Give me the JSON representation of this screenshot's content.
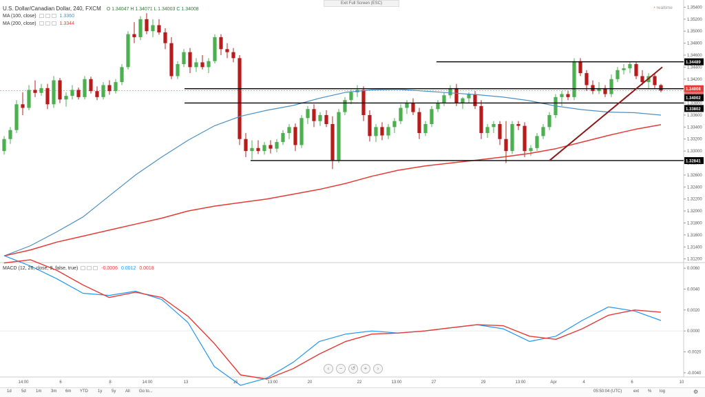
{
  "header": {
    "symbol": "U.S. Dollar/Canadian Dollar, 240, FXCM",
    "ohlc": "O 1.34047  H 1.34071  L 1.34003  C 1.34008",
    "ma100_label": "MA (100, close)",
    "ma100_value": "1.3360",
    "ma200_label": "MA (200, close)",
    "ma200_value": "1.3344",
    "exit_fullscreen": "Exit Full Screen (ESC)",
    "realtime": "realtime"
  },
  "macd_legend": {
    "label": "MACD (12, 26, close, 9, false, true)",
    "v1": "-0.0006",
    "v2": "0.0012",
    "v3": "0.0018"
  },
  "toolbar": {
    "ranges": [
      "1d",
      "5d",
      "1m",
      "3m",
      "6m",
      "YTD",
      "1y",
      "5y",
      "All",
      "Go to..."
    ],
    "time": "05:50:04 (UTC)",
    "ext": "ext",
    "pct": "%",
    "log": "log",
    "gear": "gear-icon"
  },
  "colors": {
    "up": "#4caf50",
    "down": "#b71c1c",
    "ma100": "#4a90c2",
    "ma200": "#e53935",
    "macd": "#2196f3",
    "signal": "#e53935",
    "level_line": "#000000",
    "trendline": "#8b1a1a"
  },
  "chart_data": [
    {
      "type": "candlestick",
      "title": "U.S. Dollar/Canadian Dollar, 240, FXCM",
      "y_ticks": [
        "1.35400",
        "1.35200",
        "1.35000",
        "1.34800",
        "1.34600",
        "1.34400",
        "1.34200",
        "1.34000",
        "1.33800",
        "1.33600",
        "1.33400",
        "1.33200",
        "1.33000",
        "1.32800",
        "1.32600",
        "1.32400",
        "1.32200",
        "1.32000",
        "1.31800",
        "1.31600",
        "1.31400",
        "1.31200"
      ],
      "ylim": [
        1.3115,
        1.3552
      ],
      "x_ticks": [
        "14:00",
        "6",
        "8",
        "14:00",
        "13",
        "15",
        "13:00",
        "20",
        "22",
        "13:00",
        "27",
        "29",
        "13:00",
        "Apr",
        "4",
        "6",
        "10"
      ],
      "price_labels": [
        "1.34489",
        "1.34008",
        "3:09:56",
        "1.34002",
        "1.33802",
        "1.32841"
      ],
      "levels": [
        1.34489,
        1.34002,
        1.33802,
        1.32841
      ],
      "candles": [
        [
          1.33,
          1.3325,
          1.3294,
          1.332
        ],
        [
          1.332,
          1.334,
          1.3312,
          1.3335
        ],
        [
          1.3335,
          1.3385,
          1.333,
          1.3378
        ],
        [
          1.3378,
          1.3398,
          1.336,
          1.3372
        ],
        [
          1.3372,
          1.341,
          1.3368,
          1.3402
        ],
        [
          1.3402,
          1.3418,
          1.339,
          1.3397
        ],
        [
          1.3397,
          1.3412,
          1.3392,
          1.3405
        ],
        [
          1.3405,
          1.3412,
          1.337,
          1.3378
        ],
        [
          1.3378,
          1.3425,
          1.3372,
          1.3418
        ],
        [
          1.3418,
          1.3422,
          1.338,
          1.3386
        ],
        [
          1.3386,
          1.3398,
          1.3374,
          1.3392
        ],
        [
          1.3392,
          1.341,
          1.3386,
          1.3402
        ],
        [
          1.3402,
          1.3406,
          1.3386,
          1.339
        ],
        [
          1.339,
          1.3425,
          1.3386,
          1.342
        ],
        [
          1.342,
          1.3424,
          1.3396,
          1.34
        ],
        [
          1.34,
          1.3408,
          1.3385,
          1.339
        ],
        [
          1.339,
          1.3415,
          1.3386,
          1.341
        ],
        [
          1.341,
          1.3418,
          1.3394,
          1.34
        ],
        [
          1.34,
          1.342,
          1.3396,
          1.3415
        ],
        [
          1.3415,
          1.3445,
          1.341,
          1.344
        ],
        [
          1.344,
          1.35,
          1.3436,
          1.3495
        ],
        [
          1.3495,
          1.3515,
          1.348,
          1.349
        ],
        [
          1.349,
          1.3525,
          1.3485,
          1.352
        ],
        [
          1.352,
          1.353,
          1.3495,
          1.35
        ],
        [
          1.35,
          1.352,
          1.349,
          1.351
        ],
        [
          1.351,
          1.352,
          1.3494,
          1.3498
        ],
        [
          1.3498,
          1.3505,
          1.347,
          1.348
        ],
        [
          1.348,
          1.349,
          1.342,
          1.3425
        ],
        [
          1.3425,
          1.345,
          1.342,
          1.3445
        ],
        [
          1.3445,
          1.347,
          1.344,
          1.3465
        ],
        [
          1.3465,
          1.3472,
          1.343,
          1.344
        ],
        [
          1.344,
          1.3455,
          1.3432,
          1.3448
        ],
        [
          1.3448,
          1.346,
          1.3436,
          1.344
        ],
        [
          1.344,
          1.3455,
          1.343,
          1.345
        ],
        [
          1.345,
          1.3495,
          1.3446,
          1.349
        ],
        [
          1.349,
          1.3495,
          1.346,
          1.347
        ],
        [
          1.347,
          1.348,
          1.3455,
          1.3465
        ],
        [
          1.3465,
          1.3472,
          1.3448,
          1.3455
        ],
        [
          1.3455,
          1.346,
          1.331,
          1.332
        ],
        [
          1.332,
          1.333,
          1.329,
          1.33
        ],
        [
          1.33,
          1.3318,
          1.3286,
          1.3305
        ],
        [
          1.3305,
          1.3318,
          1.3295,
          1.33
        ],
        [
          1.33,
          1.3315,
          1.3294,
          1.331
        ],
        [
          1.331,
          1.3318,
          1.3296,
          1.3304
        ],
        [
          1.3304,
          1.332,
          1.3298,
          1.3315
        ],
        [
          1.3315,
          1.3335,
          1.331,
          1.333
        ],
        [
          1.333,
          1.3345,
          1.332,
          1.334
        ],
        [
          1.334,
          1.3346,
          1.33,
          1.331
        ],
        [
          1.331,
          1.336,
          1.3305,
          1.3355
        ],
        [
          1.3355,
          1.3375,
          1.3345,
          1.337
        ],
        [
          1.337,
          1.3378,
          1.334,
          1.335
        ],
        [
          1.335,
          1.3365,
          1.3342,
          1.336
        ],
        [
          1.336,
          1.3368,
          1.334,
          1.3345
        ],
        [
          1.3345,
          1.3358,
          1.327,
          1.3285
        ],
        [
          1.3285,
          1.337,
          1.328,
          1.3365
        ],
        [
          1.3365,
          1.339,
          1.336,
          1.3385
        ],
        [
          1.3385,
          1.3402,
          1.3378,
          1.3398
        ],
        [
          1.3398,
          1.341,
          1.339,
          1.3402
        ],
        [
          1.3402,
          1.3408,
          1.335,
          1.336
        ],
        [
          1.336,
          1.3368,
          1.3316,
          1.3325
        ],
        [
          1.3325,
          1.3345,
          1.3315,
          1.334
        ],
        [
          1.334,
          1.3348,
          1.3318,
          1.3326
        ],
        [
          1.3326,
          1.3345,
          1.332,
          1.334
        ],
        [
          1.334,
          1.3355,
          1.333,
          1.335
        ],
        [
          1.335,
          1.3378,
          1.3345,
          1.3372
        ],
        [
          1.3372,
          1.3385,
          1.3362,
          1.338
        ],
        [
          1.338,
          1.3388,
          1.336,
          1.3365
        ],
        [
          1.3365,
          1.3372,
          1.332,
          1.333
        ],
        [
          1.333,
          1.335,
          1.3325,
          1.3345
        ],
        [
          1.3345,
          1.3375,
          1.334,
          1.337
        ],
        [
          1.337,
          1.3385,
          1.3365,
          1.338
        ],
        [
          1.338,
          1.3398,
          1.3375,
          1.3393
        ],
        [
          1.3393,
          1.341,
          1.3388,
          1.3405
        ],
        [
          1.3405,
          1.3412,
          1.3375,
          1.338
        ],
        [
          1.338,
          1.339,
          1.337,
          1.3388
        ],
        [
          1.3388,
          1.3398,
          1.338,
          1.3395
        ],
        [
          1.3395,
          1.34,
          1.337,
          1.3375
        ],
        [
          1.3375,
          1.3385,
          1.332,
          1.333
        ],
        [
          1.333,
          1.3345,
          1.3322,
          1.334
        ],
        [
          1.334,
          1.335,
          1.333,
          1.3345
        ],
        [
          1.3345,
          1.335,
          1.331,
          1.332
        ],
        [
          1.332,
          1.335,
          1.328,
          1.33
        ],
        [
          1.33,
          1.335,
          1.3295,
          1.3345
        ],
        [
          1.3345,
          1.335,
          1.3335,
          1.3342
        ],
        [
          1.3342,
          1.3348,
          1.329,
          1.33
        ],
        [
          1.33,
          1.331,
          1.3292,
          1.3305
        ],
        [
          1.3305,
          1.333,
          1.33,
          1.3325
        ],
        [
          1.3325,
          1.3345,
          1.332,
          1.334
        ],
        [
          1.334,
          1.3365,
          1.3335,
          1.336
        ],
        [
          1.336,
          1.3395,
          1.3355,
          1.339
        ],
        [
          1.339,
          1.34,
          1.3375,
          1.3395
        ],
        [
          1.3395,
          1.34,
          1.3385,
          1.339
        ],
        [
          1.339,
          1.3455,
          1.3385,
          1.345
        ],
        [
          1.345,
          1.3455,
          1.3425,
          1.343
        ],
        [
          1.343,
          1.3435,
          1.34,
          1.341
        ],
        [
          1.341,
          1.3418,
          1.3395,
          1.34
        ],
        [
          1.34,
          1.3415,
          1.3395,
          1.3405
        ],
        [
          1.3405,
          1.341,
          1.339,
          1.3395
        ],
        [
          1.3395,
          1.3428,
          1.339,
          1.342
        ],
        [
          1.342,
          1.344,
          1.3415,
          1.3435
        ],
        [
          1.3435,
          1.3445,
          1.3428,
          1.3438
        ],
        [
          1.3438,
          1.3448,
          1.343,
          1.3445
        ],
        [
          1.3445,
          1.3448,
          1.342,
          1.3425
        ],
        [
          1.3425,
          1.3435,
          1.341,
          1.3415
        ],
        [
          1.3415,
          1.343,
          1.3405,
          1.3425
        ],
        [
          1.3425,
          1.343,
          1.3405,
          1.341
        ],
        [
          1.341,
          1.3412,
          1.3398,
          1.3401
        ]
      ],
      "ma100": [
        1.3125,
        1.3142,
        1.3165,
        1.319,
        1.3225,
        1.326,
        1.329,
        1.3318,
        1.3342,
        1.3358,
        1.3368,
        1.3376,
        1.3388,
        1.3398,
        1.3402,
        1.3403,
        1.34,
        1.3397,
        1.3394,
        1.339,
        1.3384,
        1.3375,
        1.3369,
        1.3365,
        1.3364,
        1.336
      ],
      "ma200": [
        1.3125,
        1.3135,
        1.3148,
        1.3158,
        1.3168,
        1.3178,
        1.3188,
        1.32,
        1.3208,
        1.3214,
        1.322,
        1.3228,
        1.3236,
        1.3246,
        1.3258,
        1.3268,
        1.3275,
        1.328,
        1.3285,
        1.329,
        1.3296,
        1.3304,
        1.3315,
        1.3326,
        1.3336,
        1.3344
      ]
    },
    {
      "type": "line",
      "title": "MACD (12, 26, close, 9, false, true)",
      "y_ticks": [
        "0.0060",
        "0.0040",
        "0.0020",
        "0.0000",
        "-0.0020",
        "-0.0040"
      ],
      "ylim": [
        -0.0044,
        0.0064
      ],
      "series": [
        {
          "values": [
            0.0072,
            0.0062,
            0.005,
            0.0036,
            0.0034,
            0.0038,
            0.003,
            0.0008,
            -0.0034,
            -0.0052,
            -0.0045,
            -0.003,
            -0.001,
            -0.0003,
            0.0,
            -0.0002,
            0.0,
            0.0003,
            0.0006,
            0.0002,
            -0.001,
            -0.0005,
            0.001,
            0.0023,
            0.0019,
            0.001
          ]
        },
        {
          "values": [
            0.0065,
            0.0068,
            0.0058,
            0.0044,
            0.0032,
            0.0037,
            0.0032,
            0.0014,
            -0.0012,
            -0.0042,
            -0.0046,
            -0.0036,
            -0.0022,
            -0.001,
            -0.0003,
            -0.0002,
            0.0,
            0.0003,
            0.0006,
            0.0005,
            -0.0005,
            -0.0008,
            0.0002,
            0.0015,
            0.002,
            0.0018
          ]
        }
      ]
    }
  ]
}
